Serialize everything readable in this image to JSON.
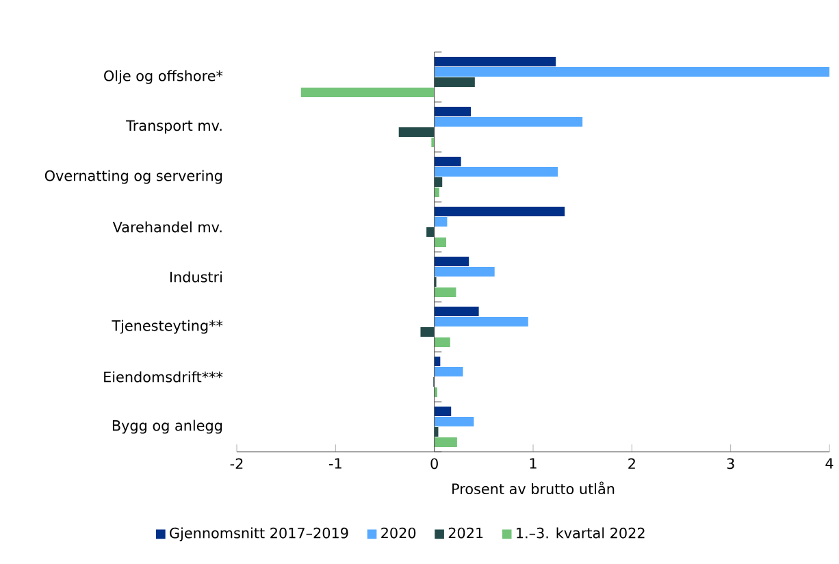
{
  "chart_data": {
    "type": "bar",
    "orientation": "horizontal",
    "xlabel": "Prosent av brutto utlån",
    "categories": [
      "Olje og offshore*",
      "Transport mv.",
      "Overnatting og servering",
      "Varehandel mv.",
      "Industri",
      "Tjenesteyting**",
      "Eiendomsdrift***",
      "Bygg og anlegg"
    ],
    "series": [
      {
        "name": "Gjennomsnitt 2017–2019",
        "color": "#003087",
        "values": [
          1.23,
          0.37,
          0.27,
          1.32,
          0.35,
          0.45,
          0.06,
          0.17
        ]
      },
      {
        "name": "2020",
        "color": "#56a9ff",
        "values": [
          4.0,
          1.5,
          1.25,
          0.13,
          0.61,
          0.95,
          0.29,
          0.4
        ]
      },
      {
        "name": "2021",
        "color": "#254a4a",
        "values": [
          0.41,
          -0.36,
          0.08,
          -0.08,
          0.02,
          -0.14,
          -0.01,
          0.04
        ]
      },
      {
        "name": "1.–3. kvartal 2022",
        "color": "#73c378",
        "values": [
          -1.35,
          -0.03,
          0.05,
          0.12,
          0.22,
          0.16,
          0.03,
          0.23
        ]
      }
    ],
    "xlim": [
      -2,
      4
    ],
    "xticks": [
      -2,
      -1,
      0,
      1,
      2,
      3,
      4
    ],
    "legend": "bottom"
  }
}
